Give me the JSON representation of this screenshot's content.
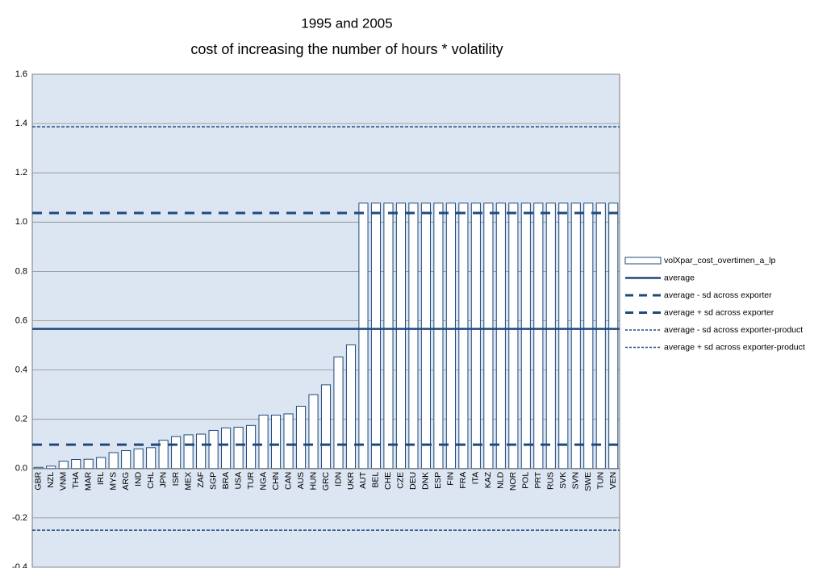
{
  "chart_data": {
    "type": "bar",
    "title": "1995 and 2005",
    "subtitle": "cost of increasing the number of hours * volatility",
    "categories": [
      "GBR",
      "NZL",
      "VNM",
      "THA",
      "MAR",
      "IRL",
      "MYS",
      "ARG",
      "IND",
      "CHL",
      "JPN",
      "ISR",
      "MEX",
      "ZAF",
      "SGP",
      "BRA",
      "USA",
      "TUR",
      "NGA",
      "CHN",
      "CAN",
      "AUS",
      "HUN",
      "GRC",
      "IDN",
      "UKR",
      "AUT",
      "BEL",
      "CHE",
      "CZE",
      "DEU",
      "DNK",
      "ESP",
      "FIN",
      "FRA",
      "ITA",
      "KAZ",
      "NLD",
      "NOR",
      "POL",
      "PRT",
      "RUS",
      "SVK",
      "SVN",
      "SWE",
      "TUN",
      "VEN"
    ],
    "series": [
      {
        "name": "volXpar_cost_overtimen_a_lp",
        "type": "bar",
        "color": "#1f497d",
        "values": [
          0.005,
          0.01,
          0.03,
          0.037,
          0.038,
          0.045,
          0.065,
          0.073,
          0.08,
          0.085,
          0.115,
          0.13,
          0.137,
          0.14,
          0.155,
          0.165,
          0.168,
          0.175,
          0.217,
          0.217,
          0.222,
          0.253,
          0.3,
          0.34,
          0.453,
          0.502,
          1.077,
          1.077,
          1.077,
          1.077,
          1.077,
          1.077,
          1.077,
          1.077,
          1.077,
          1.077,
          1.077,
          1.077,
          1.077,
          1.077,
          1.077,
          1.077,
          1.077,
          1.077,
          1.077,
          1.077,
          1.077
        ]
      },
      {
        "name": "average",
        "type": "hline",
        "style": "solid",
        "color": "#1f497d",
        "value": 0.567
      },
      {
        "name": "average - sd across exporter",
        "type": "hline",
        "style": "dashed",
        "color": "#1f497d",
        "value": 0.097
      },
      {
        "name": "average + sd across exporter",
        "type": "hline",
        "style": "dashed",
        "color": "#1f497d",
        "value": 1.037
      },
      {
        "name": "average - sd across exporter-product",
        "type": "hline",
        "style": "dotted",
        "color": "#1f497d",
        "value": -0.25
      },
      {
        "name": "average + sd across exporter-product",
        "type": "hline",
        "style": "dotted",
        "color": "#1f497d",
        "value": 1.387
      }
    ],
    "ylim": [
      -0.4,
      1.6
    ],
    "yticks": [
      -0.4,
      -0.2,
      {
        "value": 0,
        "label": "0.0"
      },
      0.2,
      0.4,
      0.6,
      0.8,
      {
        "value": 1,
        "label": "1.0"
      },
      1.2,
      1.4,
      1.6
    ],
    "grid": true,
    "legend": "right"
  }
}
